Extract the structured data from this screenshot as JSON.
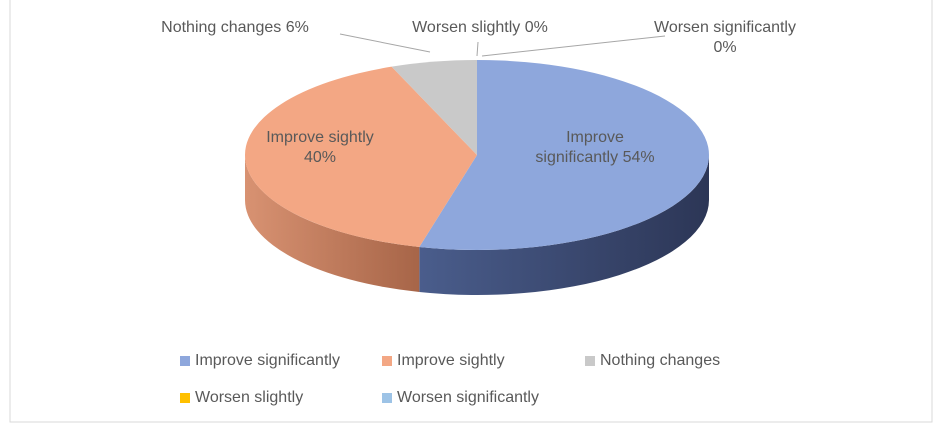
{
  "chart_data": {
    "type": "pie3d",
    "categories": [
      "Improve significantly",
      "Improve sightly",
      "Nothing changes",
      "Worsen slightly",
      "Worsen significantly"
    ],
    "values": [
      54,
      40,
      6,
      0,
      0
    ],
    "value_labels": [
      "54%",
      "40%",
      "6%",
      "0%",
      "0%"
    ],
    "colors": [
      "#8ea7dc",
      "#f3a784",
      "#c9c9c9",
      "#ffc000",
      "#9dc3e6"
    ],
    "legend": "bottom"
  }
}
